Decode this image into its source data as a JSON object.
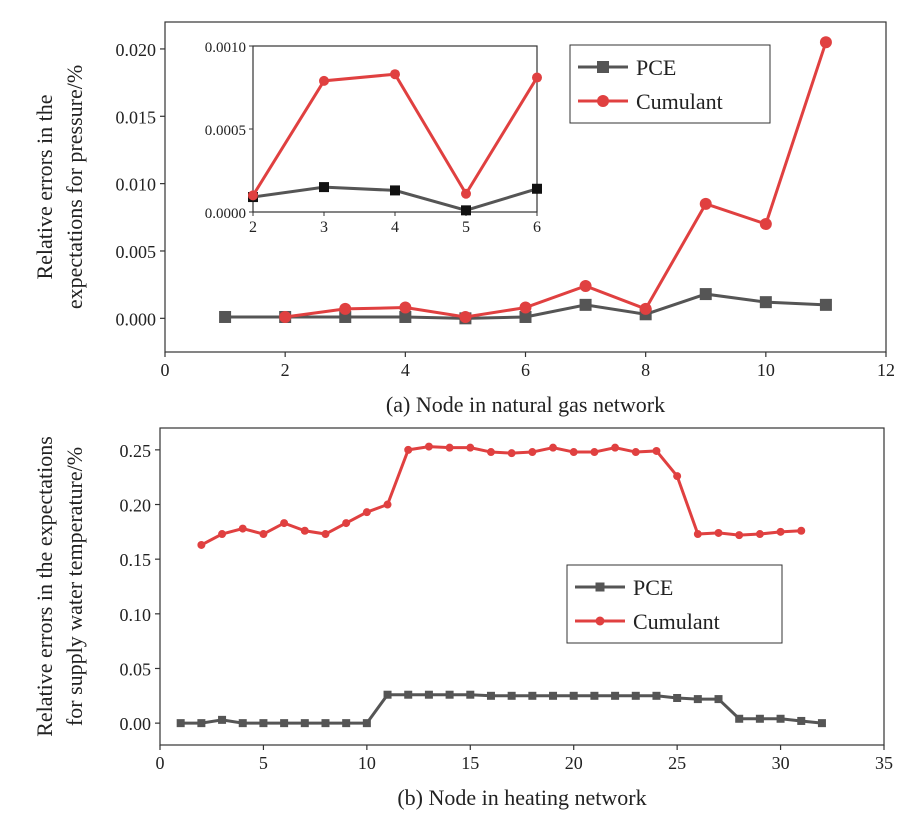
{
  "chart_data": [
    {
      "type": "line",
      "xlabel": "(a) Node in natural gas network",
      "ylabel_lines": [
        "Relative errors in the",
        "expectations for pressure/%"
      ],
      "xlim": [
        0,
        12
      ],
      "ylim": [
        -0.0025,
        0.022
      ],
      "xticks": [
        0,
        2,
        4,
        6,
        8,
        10,
        12
      ],
      "xtick_labels": [
        "0",
        "2",
        "4",
        "6",
        "8",
        "10",
        "12"
      ],
      "yticks": [
        0,
        0.005,
        0.01,
        0.015,
        0.02
      ],
      "ytick_labels": [
        "0.000",
        "0.005",
        "0.010",
        "0.015",
        "0.020"
      ],
      "grid": false,
      "legend_position": "top-right",
      "series": [
        {
          "name": "PCE",
          "color": "#555555",
          "marker": "square",
          "x": [
            1,
            2,
            3,
            4,
            5,
            6,
            7,
            8,
            9,
            10,
            11
          ],
          "y": [
            0.0001,
            0.0001,
            0.0001,
            0.0001,
            0.0,
            0.0001,
            0.001,
            0.0003,
            0.0018,
            0.0012,
            0.001
          ]
        },
        {
          "name": "Cumulant",
          "color": "#e04040",
          "marker": "circle",
          "x": [
            2,
            3,
            4,
            5,
            6,
            7,
            8,
            9,
            10,
            11
          ],
          "y": [
            0.0001,
            0.0007,
            0.0008,
            0.0001,
            0.0008,
            0.0024,
            0.0007,
            0.0085,
            0.007,
            0.0205
          ]
        }
      ],
      "inset": {
        "xlim": [
          2,
          6
        ],
        "ylim": [
          0,
          0.001
        ],
        "xticks": [
          2,
          3,
          4,
          5,
          6
        ],
        "xtick_labels": [
          "2",
          "3",
          "4",
          "5",
          "6"
        ],
        "yticks": [
          0,
          0.0005,
          0.001
        ],
        "ytick_labels": [
          "0.0000",
          "0.0005",
          "0.0010"
        ],
        "series": [
          {
            "name": "PCE",
            "color": "#555555",
            "marker": "square",
            "x": [
              2,
              3,
              4,
              5,
              6
            ],
            "y": [
              9e-05,
              0.00015,
              0.00013,
              1e-05,
              0.00014
            ]
          },
          {
            "name": "Cumulant",
            "color": "#e04040",
            "marker": "circle",
            "x": [
              2,
              3,
              4,
              5,
              6
            ],
            "y": [
              0.0001,
              0.00079,
              0.00083,
              0.00011,
              0.00081
            ]
          }
        ]
      }
    },
    {
      "type": "line",
      "xlabel": "(b) Node in heating network",
      "ylabel_lines": [
        "Relative errors in the expectations",
        "for supply water temperature/%"
      ],
      "xlim": [
        0,
        35
      ],
      "ylim": [
        -0.02,
        0.27
      ],
      "xticks": [
        0,
        5,
        10,
        15,
        20,
        25,
        30,
        35
      ],
      "xtick_labels": [
        "0",
        "5",
        "10",
        "15",
        "20",
        "25",
        "30",
        "35"
      ],
      "yticks": [
        0,
        0.05,
        0.1,
        0.15,
        0.2,
        0.25
      ],
      "ytick_labels": [
        "0.00",
        "0.05",
        "0.10",
        "0.15",
        "0.20",
        "0.25"
      ],
      "grid": false,
      "legend_position": "center-right",
      "series": [
        {
          "name": "PCE",
          "color": "#555555",
          "marker": "square",
          "x": [
            1,
            2,
            3,
            4,
            5,
            6,
            7,
            8,
            9,
            10,
            11,
            12,
            13,
            14,
            15,
            16,
            17,
            18,
            19,
            20,
            21,
            22,
            23,
            24,
            25,
            26,
            27,
            28,
            29,
            30,
            31,
            32
          ],
          "y": [
            0.0,
            0.0,
            0.003,
            0.0,
            0.0,
            0.0,
            0.0,
            0.0,
            0.0,
            0.0,
            0.026,
            0.026,
            0.026,
            0.026,
            0.026,
            0.025,
            0.025,
            0.025,
            0.025,
            0.025,
            0.025,
            0.025,
            0.025,
            0.025,
            0.023,
            0.022,
            0.022,
            0.004,
            0.004,
            0.004,
            0.002,
            0.0
          ]
        },
        {
          "name": "Cumulant",
          "color": "#e04040",
          "marker": "circle",
          "x": [
            2,
            3,
            4,
            5,
            6,
            7,
            8,
            9,
            10,
            11,
            12,
            13,
            14,
            15,
            16,
            17,
            18,
            19,
            20,
            21,
            22,
            23,
            24,
            25,
            26,
            27,
            28,
            29,
            30,
            31
          ],
          "y": [
            0.163,
            0.173,
            0.178,
            0.173,
            0.183,
            0.176,
            0.173,
            0.183,
            0.193,
            0.2,
            0.25,
            0.253,
            0.252,
            0.252,
            0.248,
            0.247,
            0.248,
            0.252,
            0.248,
            0.248,
            0.252,
            0.248,
            0.249,
            0.226,
            0.173,
            0.174,
            0.172,
            0.173,
            0.175,
            0.176
          ]
        }
      ]
    }
  ]
}
